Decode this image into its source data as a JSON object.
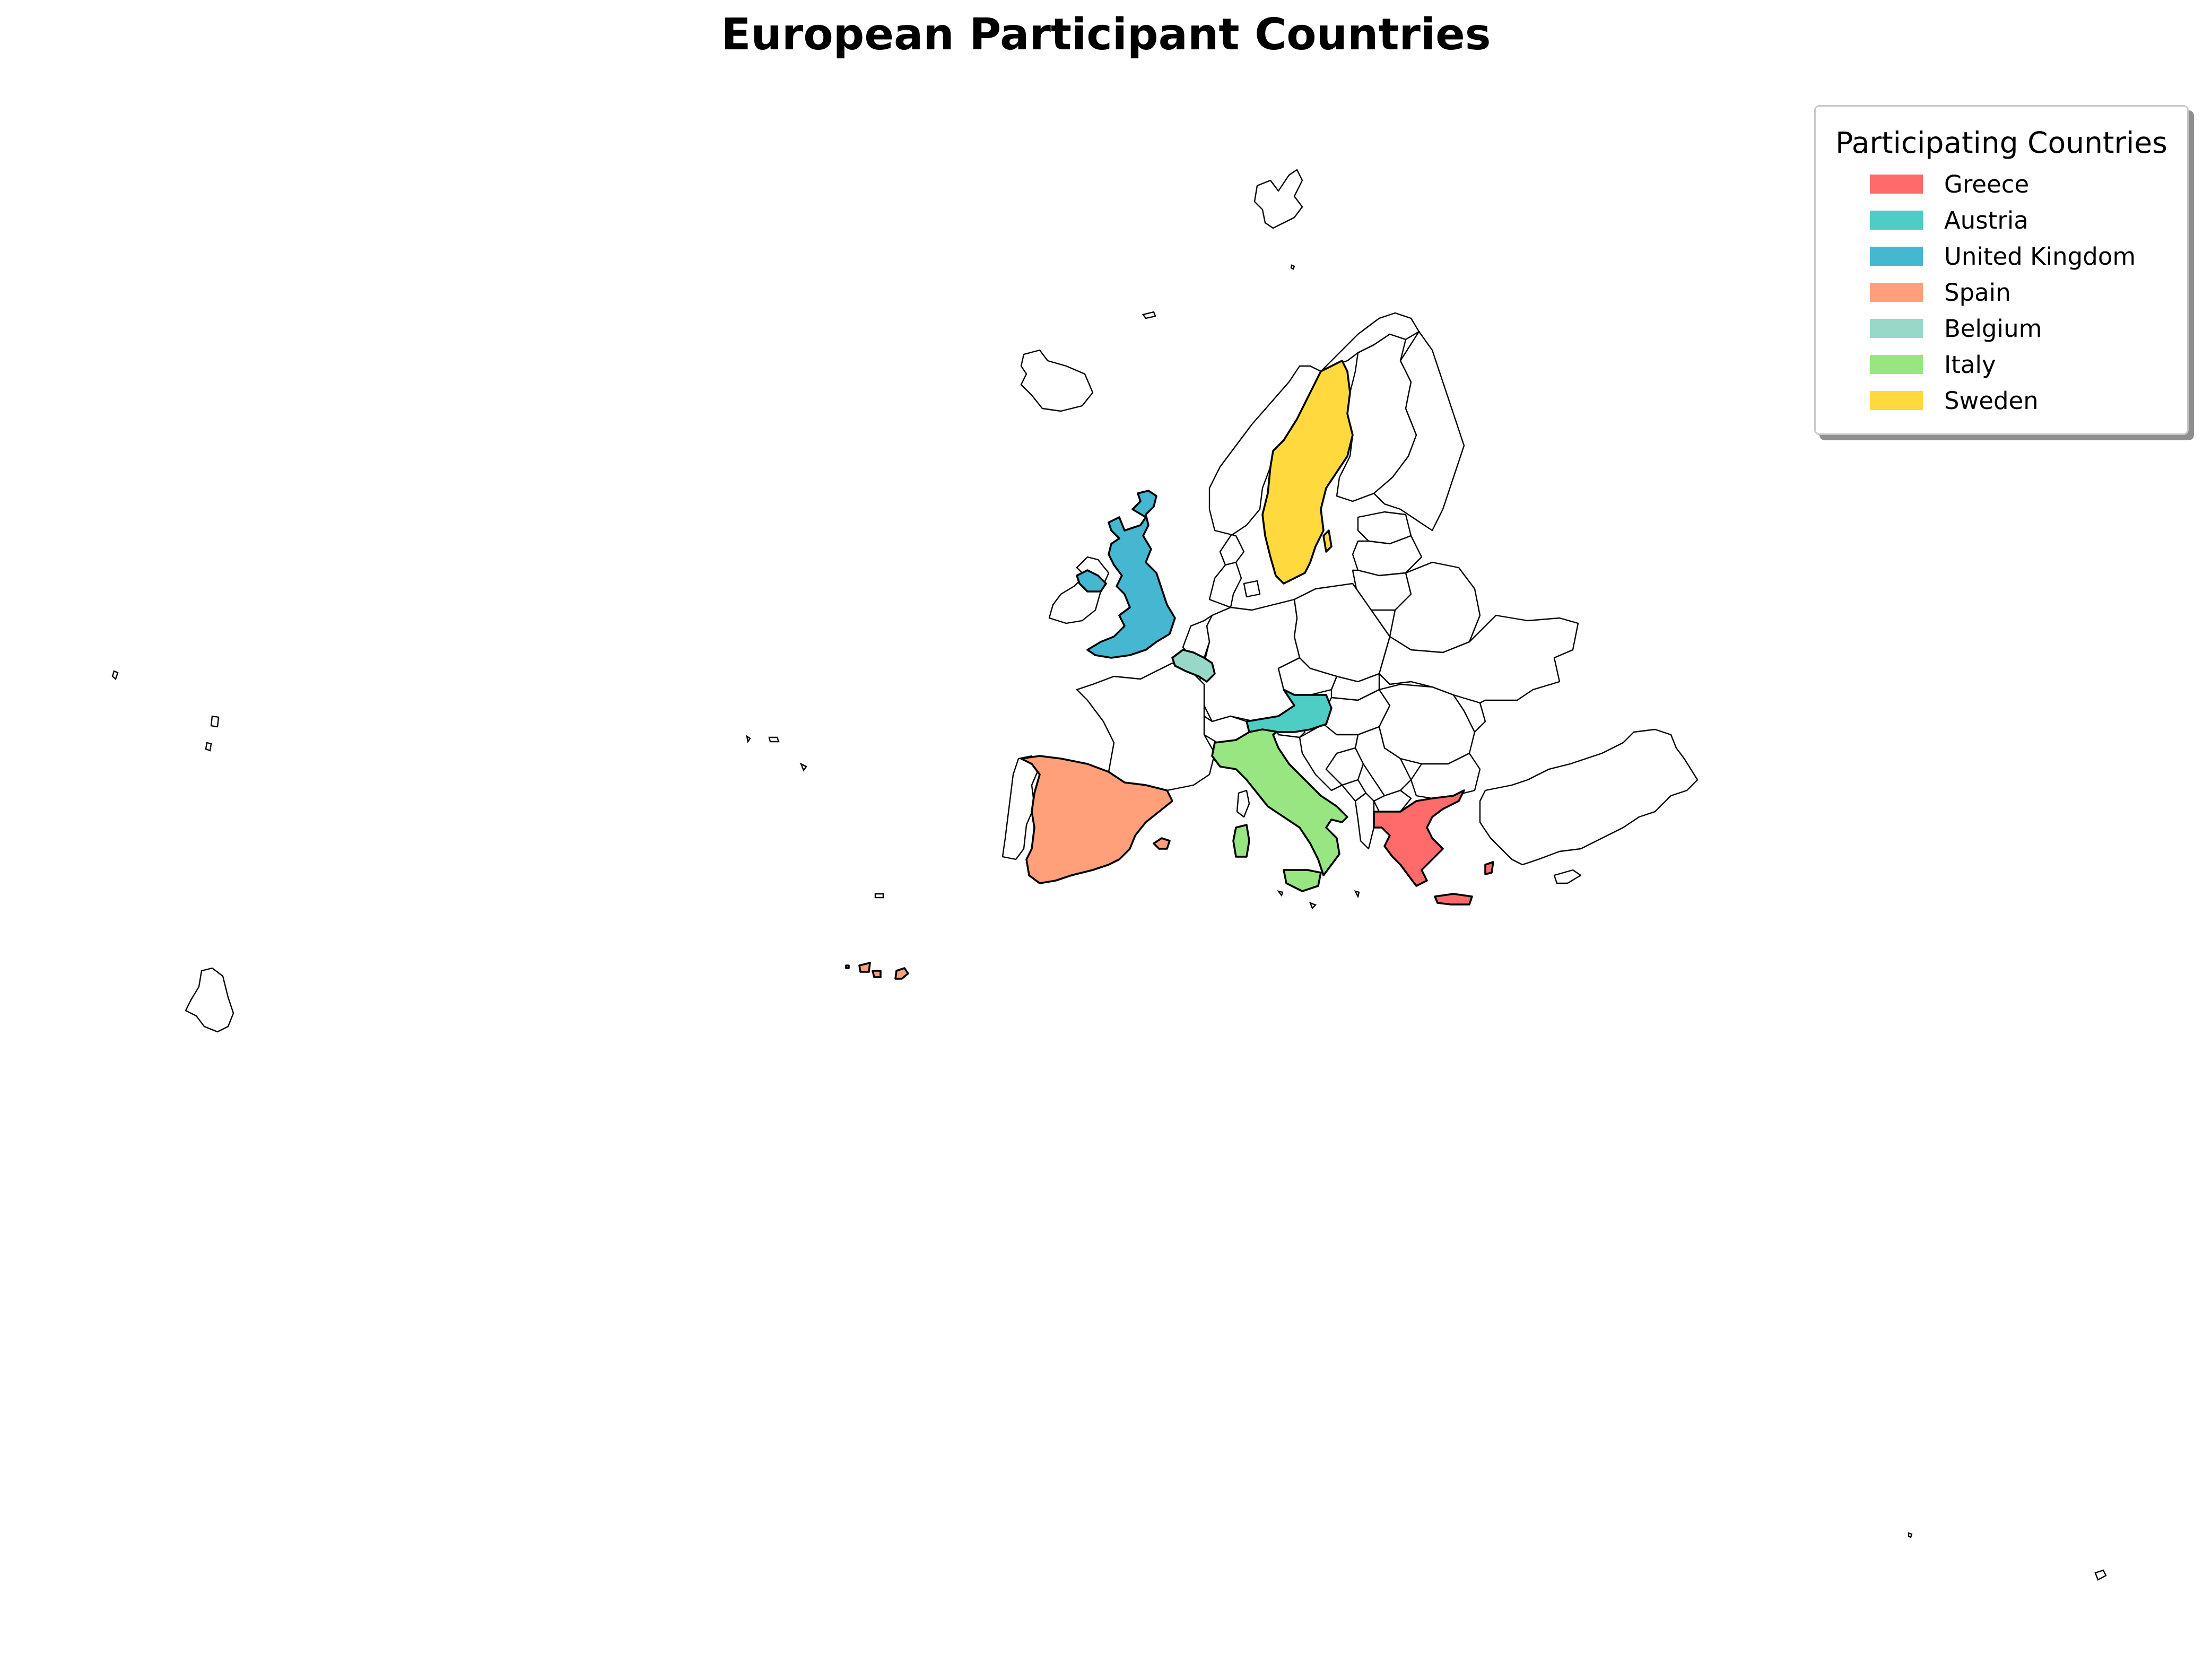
{
  "title": "European Participant Countries",
  "legend": {
    "title": "Participating Countries",
    "items": [
      {
        "label": "Greece",
        "color": "#FF6B6B"
      },
      {
        "label": "Austria",
        "color": "#4ECDC4"
      },
      {
        "label": "United Kingdom",
        "color": "#45B7D1"
      },
      {
        "label": "Spain",
        "color": "#FFA07A"
      },
      {
        "label": "Belgium",
        "color": "#98D8C8"
      },
      {
        "label": "Italy",
        "color": "#98E681"
      },
      {
        "label": "Sweden",
        "color": "#FFD93D"
      }
    ]
  },
  "map": {
    "highlighted_countries": [
      "Greece",
      "Austria",
      "United Kingdom",
      "Spain",
      "Belgium",
      "Italy",
      "Sweden"
    ],
    "base_fill": "#FFFFFF",
    "outline_color": "#000000"
  }
}
